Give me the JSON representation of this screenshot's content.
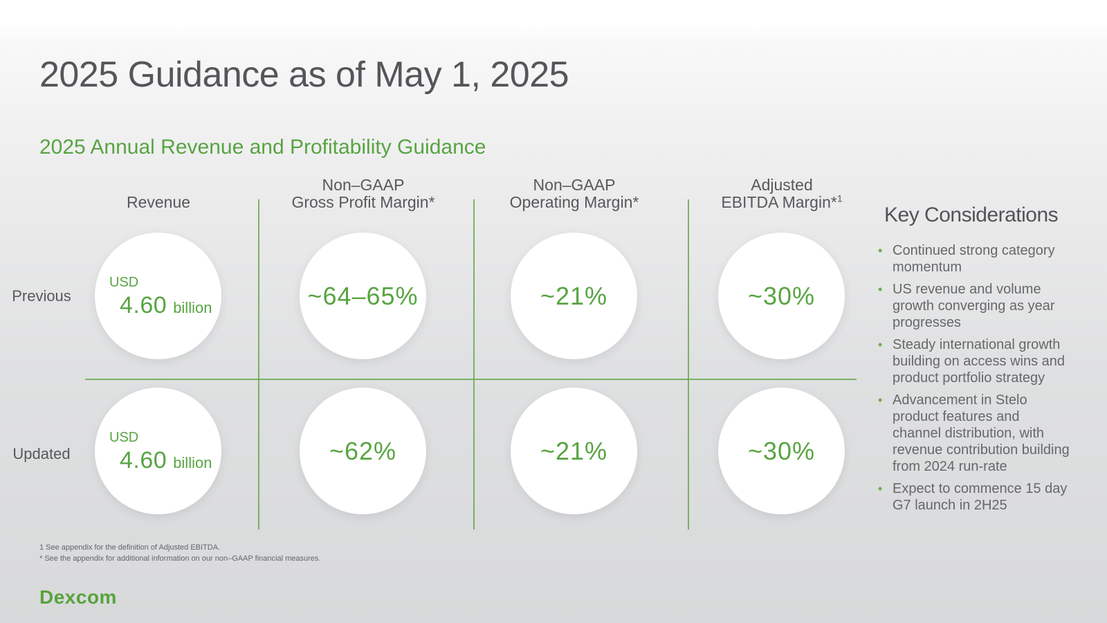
{
  "slide": {
    "title": "2025 Guidance as of May 1, 2025",
    "section_title": "2025 Annual Revenue and Profitability Guidance"
  },
  "colors": {
    "brand_green": "#58A442",
    "line_green": "#68A84E",
    "heading_gray": "#545659",
    "body_gray": "#666769"
  },
  "guidance_table": {
    "columns": [
      {
        "line1": "",
        "line2": "Revenue"
      },
      {
        "line1": "Non–GAAP",
        "line2": "Gross Profit Margin*"
      },
      {
        "line1": "Non–GAAP",
        "line2": "Operating Margin*"
      },
      {
        "line1": "Adjusted",
        "line2": "EBITDA Margin*",
        "superscript": "1"
      }
    ],
    "rows": [
      {
        "label": "Previous",
        "revenue": {
          "currency": "USD",
          "amount": "4.60",
          "unit": "billion"
        },
        "gross_profit_margin": "~64–65%",
        "operating_margin": "~21%",
        "ebitda_margin": "~30%"
      },
      {
        "label": "Updated",
        "revenue": {
          "currency": "USD",
          "amount": "4.60",
          "unit": "billion"
        },
        "gross_profit_margin": "~62%",
        "operating_margin": "~21%",
        "ebitda_margin": "~30%"
      }
    ]
  },
  "key_considerations": {
    "title": "Key Considerations",
    "bullet_marker": "•",
    "bullets": [
      "Continued strong category\nmomentum",
      "US revenue and volume\ngrowth converging as year\nprogresses",
      "Steady international growth\nbuilding on access wins and\nproduct portfolio strategy",
      "Advancement in Stelo\nproduct features and\nchannel distribution, with\nrevenue contribution building\nfrom 2024 run-rate",
      "Expect to commence 15 day\nG7 launch in 2H25"
    ]
  },
  "footnotes": [
    "1 See appendix for the definition of Adjusted EBITDA.",
    "* See the appendix for additional information on our non–GAAP financial measures."
  ],
  "logo": {
    "text": "Dexcom"
  }
}
